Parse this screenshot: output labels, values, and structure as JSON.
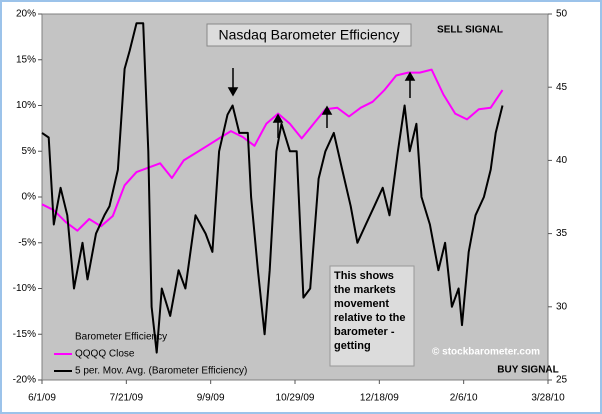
{
  "chart_data": {
    "type": "line",
    "title": "Nasdaq Barometer Efficiency",
    "annotations": {
      "sell": "SELL SIGNAL",
      "buy": "BUY SIGNAL",
      "copyright": "© stockbarometer.com",
      "note": [
        "This shows",
        "the markets",
        "movement",
        "relative to the",
        "barometer -",
        "getting"
      ]
    },
    "legend_title": "Barometer Efficiency",
    "xlim": [
      "2009-06-01",
      "2010-03-28"
    ],
    "xticks": [
      {
        "value": "2009-06-01",
        "label": "6/1/09"
      },
      {
        "value": "2009-07-21",
        "label": "7/21/09"
      },
      {
        "value": "2009-09-09",
        "label": "9/9/09"
      },
      {
        "value": "2009-10-29",
        "label": "10/29/09"
      },
      {
        "value": "2009-12-18",
        "label": "12/18/09"
      },
      {
        "value": "2010-02-06",
        "label": "2/6/10"
      },
      {
        "value": "2010-03-28",
        "label": "3/28/10"
      }
    ],
    "ylim": [
      -20,
      20
    ],
    "yticks": [
      {
        "value": -20,
        "label": "-20%"
      },
      {
        "value": -15,
        "label": "-15%"
      },
      {
        "value": -10,
        "label": "-10%"
      },
      {
        "value": -5,
        "label": "-5%"
      },
      {
        "value": 0,
        "label": "0%"
      },
      {
        "value": 5,
        "label": "5%"
      },
      {
        "value": 10,
        "label": "10%"
      },
      {
        "value": 15,
        "label": "15%"
      },
      {
        "value": 20,
        "label": "20%"
      }
    ],
    "y2lim": [
      25,
      50
    ],
    "y2ticks": [
      25,
      30,
      35,
      40,
      45,
      50
    ],
    "series": [
      {
        "name": "QQQQ Close",
        "color": "#ff00ff",
        "axis": "y2",
        "x": [
          "2009-06-01",
          "2009-06-08",
          "2009-06-15",
          "2009-06-22",
          "2009-06-29",
          "2009-07-06",
          "2009-07-13",
          "2009-07-20",
          "2009-07-27",
          "2009-08-03",
          "2009-08-10",
          "2009-08-17",
          "2009-08-24",
          "2009-08-31",
          "2009-09-07",
          "2009-09-14",
          "2009-09-21",
          "2009-09-28",
          "2009-10-05",
          "2009-10-12",
          "2009-10-19",
          "2009-10-26",
          "2009-11-02",
          "2009-11-09",
          "2009-11-16",
          "2009-11-23",
          "2009-11-30",
          "2009-12-07",
          "2009-12-14",
          "2009-12-21",
          "2009-12-28",
          "2010-01-04",
          "2010-01-11",
          "2010-01-18",
          "2010-01-25",
          "2010-02-01",
          "2010-02-08",
          "2010-02-15",
          "2010-02-22",
          "2010-03-01"
        ],
        "values": [
          37,
          36.6,
          35.8,
          35.2,
          36,
          35.5,
          36.2,
          38.3,
          39.2,
          39.5,
          39.8,
          38.8,
          40,
          40.5,
          41,
          41.5,
          42,
          41.6,
          41,
          42.5,
          43.2,
          42.5,
          41.5,
          42.5,
          43.5,
          43.6,
          43,
          43.6,
          44,
          44.8,
          45.8,
          46,
          46,
          46.2,
          44.5,
          43.2,
          42.8,
          43.5,
          43.6,
          44.8
        ]
      },
      {
        "name": "5 per. Mov. Avg. (Barometer Efficiency)",
        "color": "#000000",
        "x": [
          "2009-06-01",
          "2009-06-05",
          "2009-06-08",
          "2009-06-12",
          "2009-06-16",
          "2009-06-20",
          "2009-06-25",
          "2009-06-28",
          "2009-07-03",
          "2009-07-08",
          "2009-07-11",
          "2009-07-16",
          "2009-07-20",
          "2009-07-23",
          "2009-07-27",
          "2009-07-31",
          "2009-08-03",
          "2009-08-05",
          "2009-08-08",
          "2009-08-11",
          "2009-08-16",
          "2009-08-21",
          "2009-08-25",
          "2009-08-31",
          "2009-09-06",
          "2009-09-10",
          "2009-09-14",
          "2009-09-19",
          "2009-09-22",
          "2009-09-26",
          "2009-10-01",
          "2009-10-03",
          "2009-10-07",
          "2009-10-11",
          "2009-10-14",
          "2009-10-18",
          "2009-10-21",
          "2009-10-26",
          "2009-10-30",
          "2009-11-03",
          "2009-11-07",
          "2009-11-12",
          "2009-11-16",
          "2009-11-21",
          "2009-11-26",
          "2009-12-01",
          "2009-12-05",
          "2009-12-10",
          "2009-12-15",
          "2009-12-20",
          "2009-12-24",
          "2009-12-29",
          "2010-01-02",
          "2010-01-05",
          "2010-01-09",
          "2010-01-12",
          "2010-01-17",
          "2010-01-22",
          "2010-01-26",
          "2010-01-30",
          "2010-02-03",
          "2010-02-05",
          "2010-02-09",
          "2010-02-13",
          "2010-02-18",
          "2010-02-22",
          "2010-02-25",
          "2010-03-01"
        ],
        "values": [
          7,
          6.5,
          -3,
          1,
          -2,
          -10,
          -5,
          -9,
          -4,
          -2,
          -1,
          3,
          14,
          16,
          19,
          19,
          5,
          -12,
          -17,
          -10,
          -13,
          -8,
          -10,
          -2,
          -4,
          -6,
          5,
          9,
          10,
          7,
          7,
          0,
          -8,
          -15,
          -8,
          5,
          8,
          5,
          5,
          -11,
          -10,
          2,
          5,
          7,
          3,
          -1,
          -5,
          -3,
          -1,
          1,
          -2,
          5,
          10,
          5,
          8,
          0,
          -3,
          -8,
          -5,
          -12,
          -10,
          -14,
          -6,
          -2,
          0,
          3,
          7,
          10
        ]
      }
    ]
  }
}
